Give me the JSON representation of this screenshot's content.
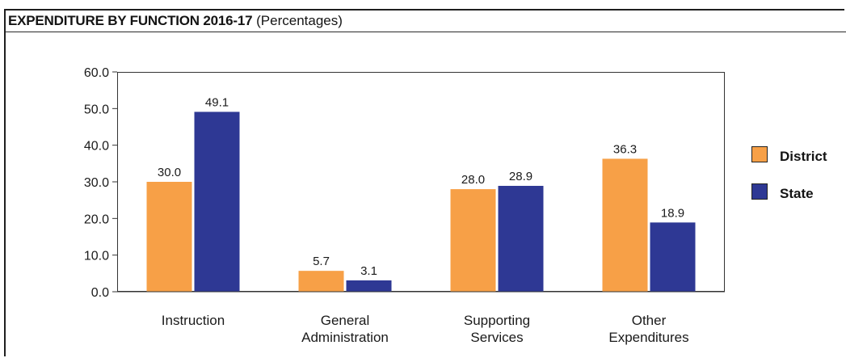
{
  "header": {
    "title_bold": "EXPENDITURE BY FUNCTION 2016-17",
    "title_rest": "(Percentages)"
  },
  "chart_data": {
    "type": "bar",
    "categories": [
      [
        "Instruction"
      ],
      [
        "General",
        "Administration"
      ],
      [
        "Supporting",
        "Services"
      ],
      [
        "Other",
        "Expenditures"
      ]
    ],
    "series": [
      {
        "name": "District",
        "color": "#f7a047",
        "values": [
          30.0,
          5.7,
          28.0,
          36.3
        ]
      },
      {
        "name": "State",
        "color": "#2e3894",
        "values": [
          49.1,
          3.1,
          28.9,
          18.9
        ]
      }
    ],
    "ylim": [
      0,
      60
    ],
    "yticks": [
      "0.0",
      "10.0",
      "20.0",
      "30.0",
      "40.0",
      "50.0",
      "60.0"
    ],
    "grid": false,
    "legend": "right"
  }
}
